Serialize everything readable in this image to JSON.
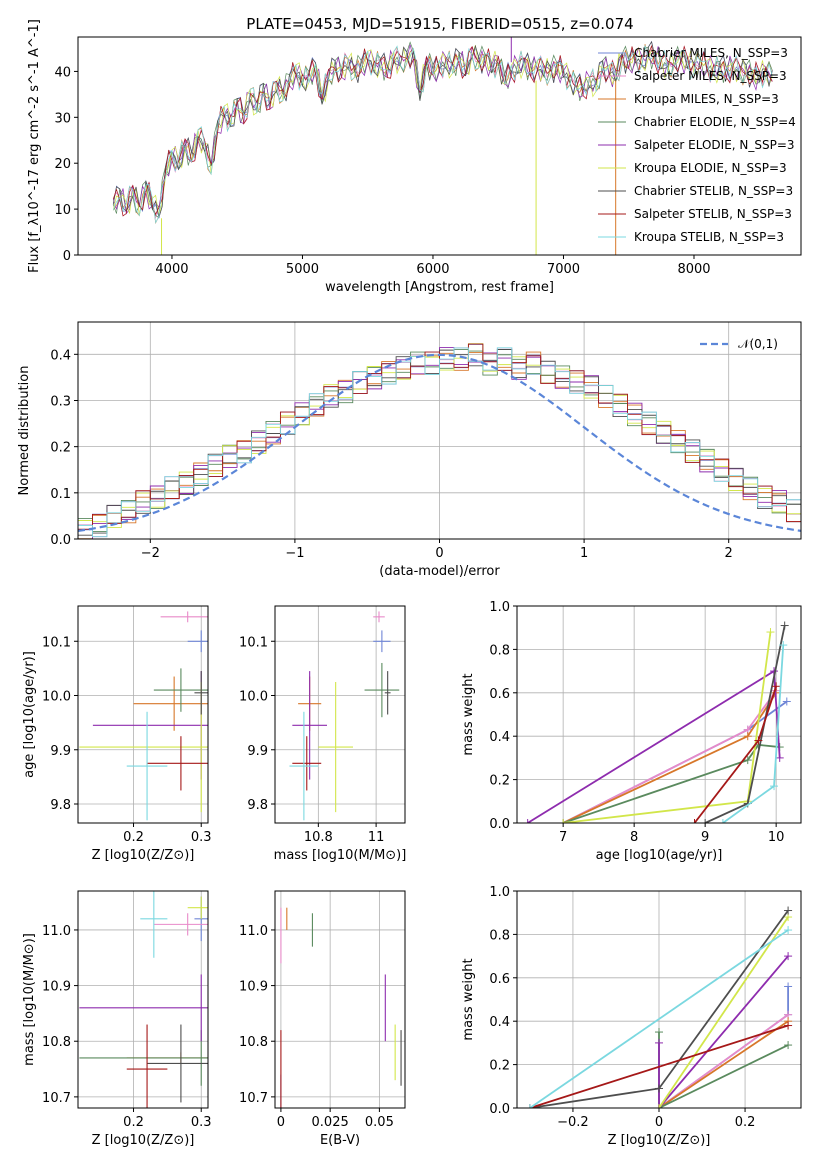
{
  "page_title": "PLATE=0453, MJD=51915, FIBERID=0515, z=0.074",
  "colors": {
    "Chabrier MILES": "#6f85d6",
    "Salpeter MILES": "#e88ac9",
    "Kroupa MILES": "#d7772a",
    "Chabrier ELODIE": "#5a8a5e",
    "Salpeter ELODIE": "#8e2cae",
    "Kroupa ELODIE": "#d2e64a",
    "Chabrier STELIB": "#4e4e4e",
    "Salpeter STELIB": "#a51818",
    "Kroupa STELIB": "#7bd8e0",
    "normal": "#5b86d8"
  },
  "chart_data": [
    {
      "id": "spectrum",
      "type": "line",
      "xlabel": "wavelength [Angstrom, rest frame]",
      "ylabel": "Flux [f_λ10^-17 erg cm^-2 s^-1 A^-1]",
      "xlim": [
        3280,
        8820
      ],
      "ylim": [
        0,
        47.5
      ],
      "xticks": [
        4000,
        5000,
        6000,
        7000,
        8000
      ],
      "yticks": [
        0,
        10,
        20,
        30,
        40
      ],
      "grid": false,
      "legend_position": "upper right",
      "series_names": [
        "Chabrier MILES, N_SSP=3",
        "Salpeter MILES, N_SSP=3",
        "Kroupa MILES, N_SSP=3",
        "Chabrier ELODIE, N_SSP=4",
        "Salpeter ELODIE, N_SSP=3",
        "Kroupa ELODIE, N_SSP=3",
        "Chabrier STELIB, N_SSP=3",
        "Salpeter STELIB, N_SSP=3",
        "Kroupa STELIB, N_SSP=3"
      ],
      "x": [
        3550,
        3600,
        3650,
        3700,
        3750,
        3800,
        3850,
        3900,
        3950,
        4000,
        4050,
        4100,
        4150,
        4200,
        4250,
        4300,
        4350,
        4400,
        4450,
        4500,
        4550,
        4600,
        4650,
        4700,
        4750,
        4800,
        4850,
        4900,
        4950,
        5000,
        5050,
        5100,
        5150,
        5200,
        5250,
        5300,
        5350,
        5400,
        5450,
        5500,
        5550,
        5600,
        5650,
        5700,
        5750,
        5800,
        5850,
        5900,
        5950,
        6000,
        6050,
        6100,
        6150,
        6200,
        6250,
        6300,
        6350,
        6400,
        6450,
        6500,
        6550,
        6600,
        6650,
        6700,
        6750,
        6800,
        6850,
        6900,
        6950,
        7000,
        7050,
        7100,
        7150,
        7200,
        7250,
        7300,
        7350,
        7400,
        7450,
        7500,
        7550,
        7600,
        7650,
        7700,
        7750,
        7800,
        7850,
        7900,
        7950,
        8000,
        8050,
        8100,
        8150,
        8200,
        8250,
        8300,
        8350,
        8400,
        8450,
        8500,
        8550,
        8600
      ],
      "y": [
        11,
        13,
        10,
        14,
        10,
        15,
        11,
        9,
        18,
        22,
        20,
        24,
        21,
        26,
        24,
        19,
        28,
        31,
        29,
        33,
        30,
        35,
        32,
        36,
        33,
        37,
        35,
        38,
        40,
        38,
        39,
        41,
        34,
        39,
        41,
        40,
        42,
        40,
        41,
        43,
        41,
        42,
        40,
        43,
        42,
        43,
        44,
        35,
        42,
        40,
        41,
        42,
        41,
        43,
        40,
        44,
        42,
        43,
        41,
        42,
        38,
        40,
        41,
        42,
        40,
        41,
        40,
        40,
        41,
        40,
        38,
        37,
        36,
        38,
        37,
        41,
        40,
        39,
        43,
        42,
        43,
        42,
        44,
        43,
        42,
        41,
        42,
        43,
        42,
        41,
        42,
        41,
        40,
        41,
        40,
        41,
        40,
        40,
        39,
        39,
        40,
        39
      ]
    },
    {
      "id": "residuals",
      "type": "histogram",
      "xlabel": "(data-model)/error",
      "ylabel": "Normed distribution",
      "xlim": [
        -2.5,
        2.5
      ],
      "ylim": [
        0,
        0.47
      ],
      "xticks": [
        -2,
        -1,
        0,
        1,
        2
      ],
      "yticks": [
        0.0,
        0.1,
        0.2,
        0.3,
        0.4
      ],
      "grid": true,
      "legend": [
        "𝒩(0,1)"
      ],
      "legend_position": "upper right",
      "bin_width": 0.1,
      "series": [
        {
          "values": [
            0.02,
            0.03,
            0.05,
            0.06,
            0.08,
            0.09,
            0.11,
            0.12,
            0.14,
            0.16,
            0.18,
            0.19,
            0.21,
            0.23,
            0.25,
            0.27,
            0.29,
            0.31,
            0.32,
            0.34,
            0.35,
            0.36,
            0.37,
            0.38,
            0.38,
            0.39,
            0.39,
            0.4,
            0.38,
            0.39,
            0.37,
            0.38,
            0.36,
            0.35,
            0.34,
            0.33,
            0.31,
            0.29,
            0.27,
            0.25,
            0.23,
            0.21,
            0.19,
            0.17,
            0.15,
            0.13,
            0.11,
            0.09,
            0.08,
            0.06
          ]
        }
      ]
    },
    {
      "id": "age_Z",
      "type": "scatter",
      "xlabel": "Z [log10(Z/Z⊙)]",
      "ylabel": "age [log10(age/yr)]",
      "xlim": [
        0.118,
        0.31
      ],
      "ylim": [
        9.765,
        10.165
      ],
      "xticks": [
        0.2,
        0.3
      ],
      "yticks": [
        9.8,
        9.9,
        10.0,
        10.1
      ],
      "grid": true,
      "points": [
        {
          "x": 0.3,
          "y": 10.1,
          "xe": 0.02,
          "ye": 0.02
        },
        {
          "x": 0.28,
          "y": 10.145,
          "xe": 0.04,
          "ye": 0.01
        },
        {
          "x": 0.26,
          "y": 9.985,
          "xe": 0.06,
          "ye": 0.05
        },
        {
          "x": 0.27,
          "y": 10.01,
          "xe": 0.04,
          "ye": 0.04
        },
        {
          "x": 0.3,
          "y": 9.945,
          "xe": 0.16,
          "ye": 0.1
        },
        {
          "x": 0.3,
          "y": 9.905,
          "xe": 0.18,
          "ye": 0.12
        },
        {
          "x": 0.3,
          "y": 10.005,
          "xe": 0.01,
          "ye": 0.04
        },
        {
          "x": 0.27,
          "y": 9.875,
          "xe": 0.05,
          "ye": 0.05
        },
        {
          "x": 0.22,
          "y": 9.87,
          "xe": 0.03,
          "ye": 0.1
        }
      ]
    },
    {
      "id": "age_mass",
      "type": "scatter",
      "xlabel": "mass [log10(M/M⊙)]",
      "ylabel": "",
      "xlim": [
        10.65,
        11.1
      ],
      "ylim": [
        9.765,
        10.165
      ],
      "xticks": [
        10.8,
        11.0
      ],
      "yticks": [
        9.8,
        9.9,
        10.0,
        10.1
      ],
      "grid": true,
      "points": [
        {
          "x": 11.02,
          "y": 10.1,
          "xe": 0.03,
          "ye": 0.02
        },
        {
          "x": 11.01,
          "y": 10.145,
          "xe": 0.02,
          "ye": 0.01
        },
        {
          "x": 10.77,
          "y": 9.985,
          "xe": 0.04,
          "ye": 0.05
        },
        {
          "x": 11.02,
          "y": 10.01,
          "xe": 0.06,
          "ye": 0.05
        },
        {
          "x": 10.77,
          "y": 9.945,
          "xe": 0.06,
          "ye": 0.1
        },
        {
          "x": 10.86,
          "y": 9.905,
          "xe": 0.06,
          "ye": 0.12
        },
        {
          "x": 11.04,
          "y": 10.005,
          "xe": 0.01,
          "ye": 0.04
        },
        {
          "x": 10.76,
          "y": 9.875,
          "xe": 0.05,
          "ye": 0.05
        },
        {
          "x": 10.75,
          "y": 9.87,
          "xe": 0.05,
          "ye": 0.1
        }
      ]
    },
    {
      "id": "mass_weight_age",
      "type": "line",
      "xlabel": "age [log10(age/yr)]",
      "ylabel": "mass weight",
      "xlim": [
        6.35,
        10.35
      ],
      "ylim": [
        0,
        1
      ],
      "xticks": [
        7,
        8,
        9,
        10
      ],
      "yticks": [
        0.0,
        0.2,
        0.4,
        0.6,
        0.8,
        1.0
      ],
      "grid": true,
      "series": [
        {
          "name": "Chabrier MILES",
          "x": [
            7.0,
            9.6,
            10.15
          ],
          "y": [
            0.0,
            0.43,
            0.56
          ]
        },
        {
          "name": "Salpeter MILES",
          "x": [
            7.0,
            9.6,
            10.0
          ],
          "y": [
            0.0,
            0.43,
            0.61
          ]
        },
        {
          "name": "Kroupa MILES",
          "x": [
            7.0,
            9.6,
            10.0
          ],
          "y": [
            0.0,
            0.4,
            0.6
          ]
        },
        {
          "name": "Chabrier ELODIE",
          "x": [
            7.0,
            9.6,
            9.75,
            10.05
          ],
          "y": [
            0.0,
            0.29,
            0.36,
            0.35
          ]
        },
        {
          "name": "Salpeter ELODIE",
          "x": [
            6.5,
            9.97,
            10.05
          ],
          "y": [
            0.0,
            0.7,
            0.3
          ]
        },
        {
          "name": "Kroupa ELODIE",
          "x": [
            7.0,
            9.6,
            9.92
          ],
          "y": [
            0.0,
            0.1,
            0.88
          ]
        },
        {
          "name": "Chabrier STELIB",
          "x": [
            9.0,
            9.6,
            10.12
          ],
          "y": [
            0.0,
            0.09,
            0.91
          ]
        },
        {
          "name": "Salpeter STELIB",
          "x": [
            8.85,
            9.75,
            10.0
          ],
          "y": [
            0.0,
            0.38,
            0.63
          ]
        },
        {
          "name": "Kroupa STELIB",
          "x": [
            9.25,
            9.97,
            10.1
          ],
          "y": [
            0.0,
            0.17,
            0.82
          ]
        }
      ]
    },
    {
      "id": "mass_Z",
      "type": "scatter",
      "xlabel": "Z [log10(Z/Z⊙)]",
      "ylabel": "mass [log10(M/M⊙)]",
      "xlim": [
        0.118,
        0.31
      ],
      "ylim": [
        10.68,
        11.07
      ],
      "xticks": [
        0.2,
        0.3
      ],
      "yticks": [
        10.7,
        10.8,
        10.9,
        11.0
      ],
      "grid": true,
      "points": [
        {
          "x": 0.3,
          "y": 11.02,
          "xe": 0.01,
          "ye": 0.04
        },
        {
          "x": 0.28,
          "y": 11.01,
          "xe": 0.05,
          "ye": 0.02
        },
        {
          "x": 0.27,
          "y": 10.77,
          "xe": 0.08,
          "ye": 0.01
        },
        {
          "x": 0.3,
          "y": 10.77,
          "xe": 0.18,
          "ye": 0.05
        },
        {
          "x": 0.3,
          "y": 10.86,
          "xe": 0.18,
          "ye": 0.06
        },
        {
          "x": 0.3,
          "y": 11.04,
          "xe": 0.02,
          "ye": 0.02
        },
        {
          "x": 0.27,
          "y": 10.76,
          "xe": 0.05,
          "ye": 0.07
        },
        {
          "x": 0.22,
          "y": 10.75,
          "xe": 0.03,
          "ye": 0.08
        },
        {
          "x": 0.23,
          "y": 11.02,
          "xe": 0.02,
          "ye": 0.07
        }
      ]
    },
    {
      "id": "mass_ebv",
      "type": "scatter",
      "xlabel": "E(B-V)",
      "ylabel": "",
      "xlim": [
        -0.003,
        0.063
      ],
      "ylim": [
        10.68,
        11.07
      ],
      "xticks": [
        0.0,
        0.025,
        0.05
      ],
      "yticks": [
        10.7,
        10.8,
        10.9,
        11.0
      ],
      "grid": true,
      "points": [
        {
          "x": 0.0,
          "y": 10.71,
          "ye": 0.03
        },
        {
          "x": 0.0,
          "y": 10.99,
          "ye": 0.05
        },
        {
          "x": 0.003,
          "y": 11.02,
          "ye": 0.02
        },
        {
          "x": 0.016,
          "y": 11.0,
          "ye": 0.03
        },
        {
          "x": 0.053,
          "y": 10.86,
          "ye": 0.06
        },
        {
          "x": 0.058,
          "y": 10.78,
          "ye": 0.05
        },
        {
          "x": 0.061,
          "y": 10.77,
          "ye": 0.05
        },
        {
          "x": 0.0,
          "y": 10.75,
          "ye": 0.07
        }
      ]
    },
    {
      "id": "mass_weight_Z",
      "type": "line",
      "xlabel": "Z [log10(Z/Z⊙)]",
      "ylabel": "mass weight",
      "xlim": [
        -0.33,
        0.33
      ],
      "ylim": [
        0,
        1
      ],
      "xticks": [
        -0.2,
        0.0,
        0.2
      ],
      "yticks": [
        0.0,
        0.2,
        0.4,
        0.6,
        0.8,
        1.0
      ],
      "grid": true,
      "series": [
        {
          "name": "Chabrier MILES",
          "x": [
            0.0,
            0.3,
            0.3
          ],
          "y": [
            0.0,
            0.43,
            0.56
          ]
        },
        {
          "name": "Salpeter MILES",
          "x": [
            0.0,
            0.3
          ],
          "y": [
            0.0,
            0.43
          ]
        },
        {
          "name": "Kroupa MILES",
          "x": [
            0.0,
            0.3
          ],
          "y": [
            0.0,
            0.4
          ]
        },
        {
          "name": "Chabrier ELODIE",
          "x": [
            0.0,
            0.0,
            0.3
          ],
          "y": [
            0.35,
            0.0,
            0.29
          ]
        },
        {
          "name": "Salpeter ELODIE",
          "x": [
            0.0,
            0.0,
            0.3
          ],
          "y": [
            0.3,
            0.0,
            0.7
          ]
        },
        {
          "name": "Kroupa ELODIE",
          "x": [
            0.0,
            0.3
          ],
          "y": [
            0.0,
            0.88
          ]
        },
        {
          "name": "Chabrier STELIB",
          "x": [
            -0.3,
            0.0,
            0.3
          ],
          "y": [
            0.0,
            0.09,
            0.91
          ]
        },
        {
          "name": "Salpeter STELIB",
          "x": [
            -0.3,
            0.3
          ],
          "y": [
            0.0,
            0.38
          ]
        },
        {
          "name": "Kroupa STELIB",
          "x": [
            -0.3,
            0.3
          ],
          "y": [
            0.0,
            0.82
          ]
        }
      ]
    }
  ]
}
